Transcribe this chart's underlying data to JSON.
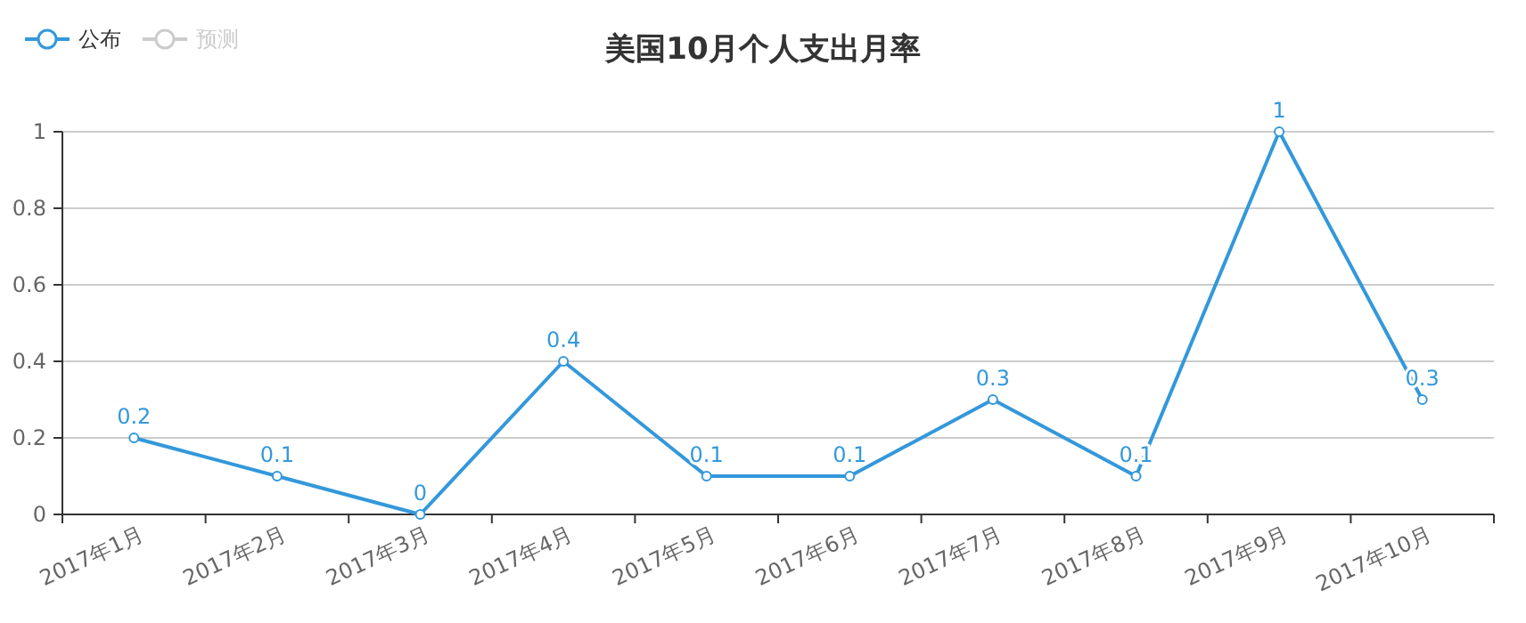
{
  "chart_data": {
    "type": "line",
    "title": "美国10月个人支出月率",
    "categories": [
      "2017年1月",
      "2017年2月",
      "2017年3月",
      "2017年4月",
      "2017年5月",
      "2017年6月",
      "2017年7月",
      "2017年8月",
      "2017年9月",
      "2017年10月"
    ],
    "series": [
      {
        "name": "公布",
        "color": "#3398db",
        "values": [
          0.2,
          0.1,
          0,
          0.4,
          0.1,
          0.1,
          0.3,
          0.1,
          1,
          0.3
        ]
      },
      {
        "name": "预测",
        "color": "#cccccc",
        "values": [
          null,
          null,
          null,
          null,
          null,
          null,
          null,
          null,
          null,
          null
        ]
      }
    ],
    "ylim": [
      0,
      1
    ],
    "yticks": [
      0,
      0.2,
      0.4,
      0.6,
      0.8,
      1
    ],
    "grid": "y",
    "legend": "top left",
    "data_labels": true,
    "marker": "circle"
  }
}
